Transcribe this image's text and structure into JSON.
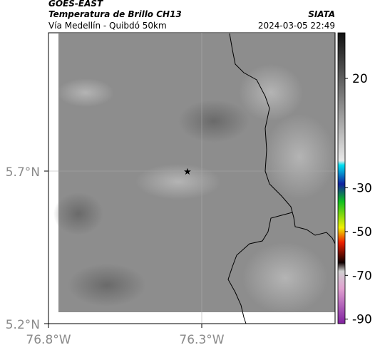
{
  "header": {
    "satellite": "GOES-EAST",
    "product": "Temperatura de Brillo CH13",
    "region": "Vía Medellín - Quibdó 50km",
    "source": "SIATA",
    "timestamp": "2024-03-05 22:49"
  },
  "axes": {
    "latitude": [
      "5.7°N",
      "5.2°N"
    ],
    "longitude": [
      "76.8°W",
      "76.3°W"
    ]
  },
  "colorbar": {
    "ticks": [
      20,
      -30,
      -50,
      -70,
      -90
    ]
  }
}
